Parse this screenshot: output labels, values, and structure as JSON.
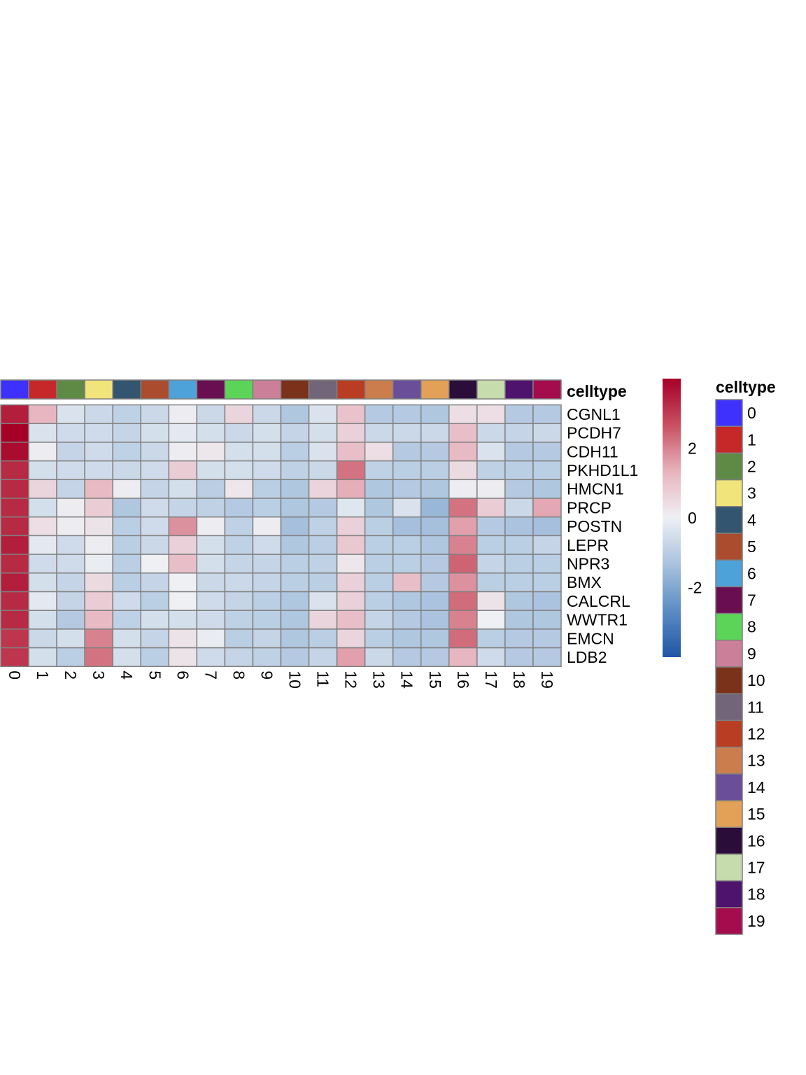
{
  "chart_data": {
    "type": "heatmap",
    "rows": [
      "CGNL1",
      "PCDH7",
      "CDH11",
      "PKHD1L1",
      "HMCN1",
      "PRCP",
      "POSTN",
      "LEPR",
      "NPR3",
      "BMX",
      "CALCRL",
      "WWTR1",
      "EMCN",
      "LDB2"
    ],
    "columns": [
      "0",
      "1",
      "2",
      "3",
      "4",
      "5",
      "6",
      "7",
      "8",
      "9",
      "10",
      "11",
      "12",
      "13",
      "14",
      "15",
      "16",
      "17",
      "18",
      "19"
    ],
    "values": [
      [
        3.5,
        1.3,
        -0.4,
        -0.7,
        -0.9,
        -0.7,
        0.1,
        -0.7,
        0.6,
        -0.7,
        -1.2,
        -0.4,
        1.0,
        -1.1,
        -1.1,
        -1.2,
        0.4,
        0.4,
        -1.1,
        -1.1
      ],
      [
        4.0,
        -0.4,
        -0.6,
        -0.6,
        -0.8,
        -0.5,
        -0.2,
        -0.5,
        -0.7,
        -0.5,
        -0.8,
        -0.5,
        0.7,
        -0.7,
        -0.7,
        -0.7,
        1.1,
        -0.7,
        -0.8,
        -0.7
      ],
      [
        3.8,
        0.1,
        -0.8,
        -0.6,
        -0.9,
        -0.7,
        0.1,
        0.2,
        -0.5,
        -0.5,
        -1.0,
        -0.4,
        1.1,
        0.4,
        -1.1,
        -1.1,
        1.2,
        -0.4,
        -1.1,
        -1.1
      ],
      [
        3.3,
        -0.5,
        -0.6,
        -0.6,
        -0.7,
        -0.6,
        0.8,
        -0.5,
        -0.5,
        -0.6,
        -0.9,
        -0.7,
        2.2,
        -0.9,
        -1.0,
        -1.0,
        0.5,
        -0.9,
        -1.0,
        -1.0
      ],
      [
        3.3,
        0.6,
        -0.8,
        1.2,
        0.1,
        -0.8,
        -0.5,
        -1.0,
        0.2,
        -1.0,
        -1.2,
        0.6,
        1.4,
        -1.2,
        -1.1,
        -1.2,
        0.1,
        0.1,
        -1.1,
        -1.2
      ],
      [
        3.3,
        -0.5,
        0.1,
        0.8,
        -1.2,
        -0.6,
        -0.8,
        -0.9,
        -1.1,
        -1.0,
        -1.2,
        -1.1,
        -0.3,
        -1.2,
        -0.4,
        -1.6,
        2.2,
        0.8,
        -0.7,
        1.5
      ],
      [
        3.3,
        0.4,
        0.1,
        0.3,
        -1.0,
        -0.6,
        1.8,
        0.1,
        -0.9,
        0.1,
        -1.4,
        -0.9,
        0.7,
        -1.0,
        -1.4,
        -1.4,
        1.6,
        -1.1,
        -1.3,
        -1.4
      ],
      [
        3.5,
        -0.2,
        -0.6,
        0.1,
        -1.0,
        -0.7,
        0.7,
        -0.5,
        -0.9,
        -0.6,
        -1.2,
        -1.0,
        0.9,
        -1.0,
        -1.0,
        -1.2,
        2.0,
        -1.0,
        -1.0,
        -0.8
      ],
      [
        3.3,
        -0.6,
        -0.6,
        -0.1,
        -1.0,
        0.0,
        1.1,
        -0.5,
        -0.8,
        -0.8,
        -1.0,
        -0.9,
        0.2,
        -1.0,
        -1.0,
        -1.1,
        2.4,
        -0.8,
        -1.0,
        -1.0
      ],
      [
        3.5,
        -0.5,
        -0.8,
        0.5,
        -1.0,
        -0.8,
        0.0,
        -0.7,
        -0.7,
        -0.8,
        -1.0,
        -1.0,
        0.7,
        -1.0,
        1.1,
        -1.1,
        1.8,
        -1.0,
        -1.0,
        -1.0
      ],
      [
        3.3,
        -0.2,
        -0.8,
        0.8,
        -0.6,
        -1.0,
        0.0,
        -0.6,
        -0.8,
        -1.0,
        -1.2,
        -0.4,
        0.7,
        -1.0,
        -1.2,
        -1.3,
        2.3,
        0.3,
        -1.2,
        -1.3
      ],
      [
        3.3,
        -0.5,
        -1.1,
        1.2,
        -0.9,
        -0.5,
        -0.5,
        -0.6,
        -0.9,
        -1.0,
        -1.2,
        0.6,
        1.1,
        -0.8,
        -1.1,
        -1.3,
        2.0,
        0.0,
        -1.2,
        -1.2
      ],
      [
        3.1,
        -0.7,
        -0.5,
        2.0,
        -0.5,
        -0.8,
        0.3,
        -0.1,
        -1.0,
        -0.8,
        -1.2,
        -1.0,
        0.6,
        -1.0,
        -1.2,
        -1.2,
        2.3,
        -1.0,
        -1.1,
        -1.1
      ],
      [
        3.1,
        -0.5,
        -1.0,
        2.2,
        -0.5,
        -1.0,
        0.3,
        -0.6,
        -0.8,
        -0.9,
        -1.1,
        -0.8,
        1.6,
        -0.7,
        -1.1,
        -1.1,
        1.3,
        -0.6,
        -1.1,
        -1.1
      ]
    ],
    "color_scale": {
      "min": -4,
      "max": 4,
      "ticks": [
        "2",
        "0",
        "-2"
      ],
      "tick_values": [
        2,
        0,
        -2
      ],
      "colors": [
        "#1f56a5",
        "#5b8cc4",
        "#a9c2de",
        "#eef0f4",
        "#e7b4bf",
        "#c85060",
        "#a50026"
      ]
    },
    "annotation": {
      "title": "celltype",
      "column_colors": [
        "#3e31fe",
        "#c6282a",
        "#5f8a45",
        "#f0e47a",
        "#34556f",
        "#ab4c2e",
        "#4ea2da",
        "#6a0e52",
        "#5cd458",
        "#cb7f99",
        "#7b321a",
        "#726579",
        "#b83d22",
        "#cb7d4d",
        "#6a4e99",
        "#e2a157",
        "#2b0d3a",
        "#c6dcac",
        "#4e136c",
        "#a40c4e"
      ]
    },
    "legend": {
      "title": "celltype",
      "labels": [
        "0",
        "1",
        "2",
        "3",
        "4",
        "5",
        "6",
        "7",
        "8",
        "9",
        "10",
        "11",
        "12",
        "13",
        "14",
        "15",
        "16",
        "17",
        "18",
        "19"
      ]
    }
  }
}
